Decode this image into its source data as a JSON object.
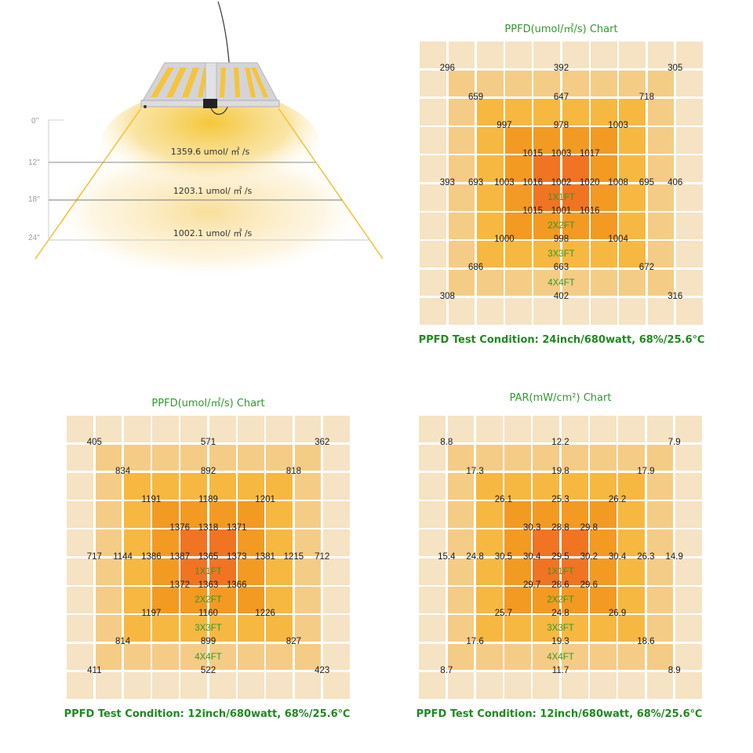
{
  "light_diagram": {
    "scale_labels": [
      "0''",
      "12''",
      "18''",
      "24''"
    ],
    "readings": [
      {
        "height": "12''",
        "text": "1359.6 umol/ ㎡ /s"
      },
      {
        "height": "18''",
        "text": "1203.1 umol/ ㎡ /s"
      },
      {
        "height": "24''",
        "text": "1002.1 umol/ ㎡ /s"
      }
    ]
  },
  "colors": {
    "ring0": "#f5e3c3",
    "ring1": "#f5cc85",
    "ring2": "#f6b840",
    "ring3": "#f39a22",
    "ring4": "#f07422",
    "title_green": "#2f9a2a",
    "beam": "#f4c430"
  },
  "chart_data": [
    {
      "type": "heatmap",
      "title": "PPFD(umol/㎡/s) Chart",
      "caption": "PPFD Test Condition: 24inch/680watt, 68%/25.6℃",
      "grid_size": [
        10,
        10
      ],
      "zones": [
        "1X1FT",
        "2X2FT",
        "3X3FT",
        "4X4FT"
      ],
      "rows": [
        [
          "296",
          "392",
          "305"
        ],
        [
          "659",
          "647",
          "718"
        ],
        [
          "997",
          "978",
          "1003"
        ],
        [
          "1015",
          "1003",
          "1017"
        ],
        [
          "393",
          "693",
          "1003",
          "1016",
          "1002",
          "1020",
          "1008",
          "695",
          "406"
        ],
        [
          "1015",
          "1001",
          "1016"
        ],
        [
          "1000",
          "998",
          "1004"
        ],
        [
          "686",
          "663",
          "672"
        ],
        [
          "308",
          "402",
          "316"
        ]
      ]
    },
    {
      "type": "heatmap",
      "title": "PPFD(umol/㎡/s) Chart",
      "caption": "PPFD Test Condition: 12inch/680watt, 68%/25.6℃",
      "grid_size": [
        10,
        10
      ],
      "zones": [
        "1X1FT",
        "2X2FT",
        "3X3FT",
        "4X4FT"
      ],
      "rows": [
        [
          "405",
          "571",
          "362"
        ],
        [
          "834",
          "892",
          "818"
        ],
        [
          "1191",
          "1189",
          "1201"
        ],
        [
          "1376",
          "1318",
          "1371"
        ],
        [
          "717",
          "1144",
          "1386",
          "1387",
          "1365",
          "1373",
          "1381",
          "1215",
          "712"
        ],
        [
          "1372",
          "1363",
          "1366"
        ],
        [
          "1197",
          "1160",
          "1226"
        ],
        [
          "814",
          "899",
          "827"
        ],
        [
          "411",
          "522",
          "423"
        ]
      ]
    },
    {
      "type": "heatmap",
      "title": "PAR(mW/cm²) Chart",
      "caption": "PPFD Test Condition: 12inch/680watt, 68%/25.6℃",
      "grid_size": [
        10,
        10
      ],
      "zones": [
        "1X1FT",
        "2X2FT",
        "3X3FT",
        "4X4FT"
      ],
      "rows": [
        [
          "8.8",
          "12.2",
          "7.9"
        ],
        [
          "17.3",
          "19.8",
          "17.9"
        ],
        [
          "26.1",
          "25.3",
          "26.2"
        ],
        [
          "30.3",
          "28.8",
          "29.8"
        ],
        [
          "15.4",
          "24.8",
          "30.5",
          "30.4",
          "29.5",
          "30.2",
          "30.4",
          "26.3",
          "14.9"
        ],
        [
          "29.7",
          "28.6",
          "29.6"
        ],
        [
          "25.7",
          "24.8",
          "26.9"
        ],
        [
          "17.6",
          "19.3",
          "18.6"
        ],
        [
          "8.7",
          "11.7",
          "8.9"
        ]
      ]
    }
  ]
}
